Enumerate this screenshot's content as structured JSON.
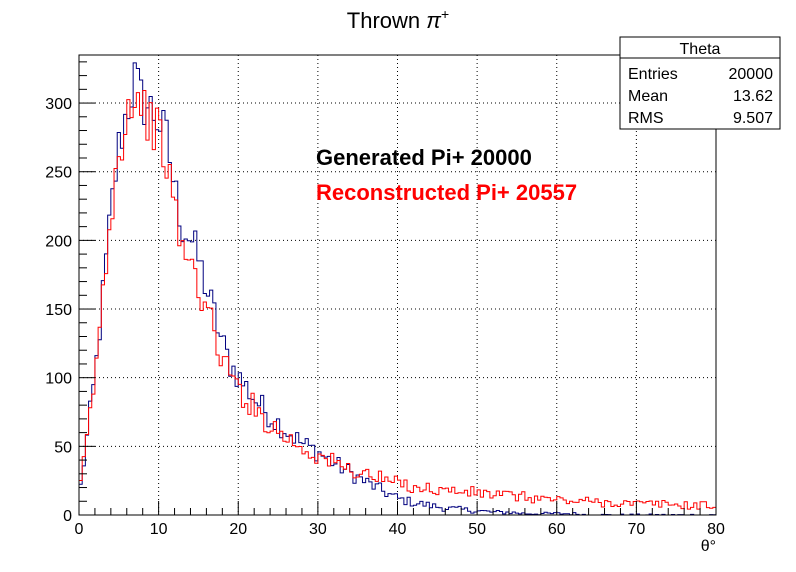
{
  "chart_data": {
    "type": "histogram",
    "title_text": "Thrown ",
    "title_symbol": "π",
    "title_sup": "+",
    "xlabel": "θ°",
    "ylabel": "",
    "xlim": [
      0,
      80
    ],
    "ylim": [
      0,
      335
    ],
    "grid": true,
    "x_ticks": [
      "0",
      "10",
      "20",
      "30",
      "40",
      "50",
      "60",
      "70",
      "80"
    ],
    "y_ticks": [
      "0",
      "50",
      "100",
      "150",
      "200",
      "250",
      "300"
    ],
    "bin_width": 0.4,
    "stats_box": {
      "title": "Theta",
      "rows": [
        {
          "label": "Entries",
          "value": "20000"
        },
        {
          "label": "Mean",
          "value": "13.62"
        },
        {
          "label": "RMS",
          "value": "9.507"
        }
      ]
    },
    "annotations": [
      {
        "text": "Generated Pi+ 20000",
        "color": "#000000"
      },
      {
        "text": "Reconstructed Pi+ 20557",
        "color": "#ff0000"
      }
    ],
    "series": [
      {
        "color": "#00007f",
        "x": [
          0,
          2,
          4,
          5,
          6,
          7,
          8,
          9,
          10,
          11,
          12,
          13,
          14,
          15,
          16,
          17,
          18,
          19,
          20,
          22,
          24,
          26,
          28,
          30,
          32,
          34,
          36,
          38,
          40,
          42,
          44,
          46,
          48,
          50,
          52,
          54,
          56,
          58,
          60,
          62,
          64,
          66,
          68,
          70,
          72,
          74,
          76,
          78,
          80
        ],
        "y": [
          12,
          100,
          220,
          268,
          294,
          318,
          300,
          296,
          287,
          274,
          238,
          210,
          202,
          186,
          165,
          146,
          125,
          110,
          101,
          85,
          72,
          62,
          52,
          46,
          38,
          31,
          24,
          18,
          12,
          9,
          7,
          5,
          4,
          3,
          2,
          2,
          1,
          1,
          1,
          1,
          0,
          0,
          0,
          0,
          0,
          0,
          0,
          0,
          0
        ]
      },
      {
        "color": "#ff0000",
        "x": [
          0,
          2,
          4,
          5,
          6,
          7,
          8,
          9,
          10,
          11,
          12,
          13,
          14,
          15,
          16,
          17,
          18,
          19,
          20,
          22,
          24,
          26,
          28,
          30,
          32,
          34,
          36,
          38,
          40,
          42,
          44,
          46,
          48,
          50,
          52,
          54,
          56,
          58,
          60,
          62,
          64,
          66,
          68,
          70,
          72,
          74,
          76,
          78,
          80
        ],
        "y": [
          12,
          100,
          222,
          265,
          292,
          310,
          295,
          288,
          276,
          258,
          222,
          195,
          182,
          168,
          150,
          132,
          114,
          102,
          92,
          78,
          66,
          57,
          49,
          43,
          38,
          33,
          30,
          26,
          23,
          21,
          19,
          18,
          17,
          16,
          15,
          14,
          13,
          12,
          11,
          10,
          10,
          9,
          9,
          8,
          8,
          8,
          7,
          7,
          7
        ]
      }
    ]
  }
}
